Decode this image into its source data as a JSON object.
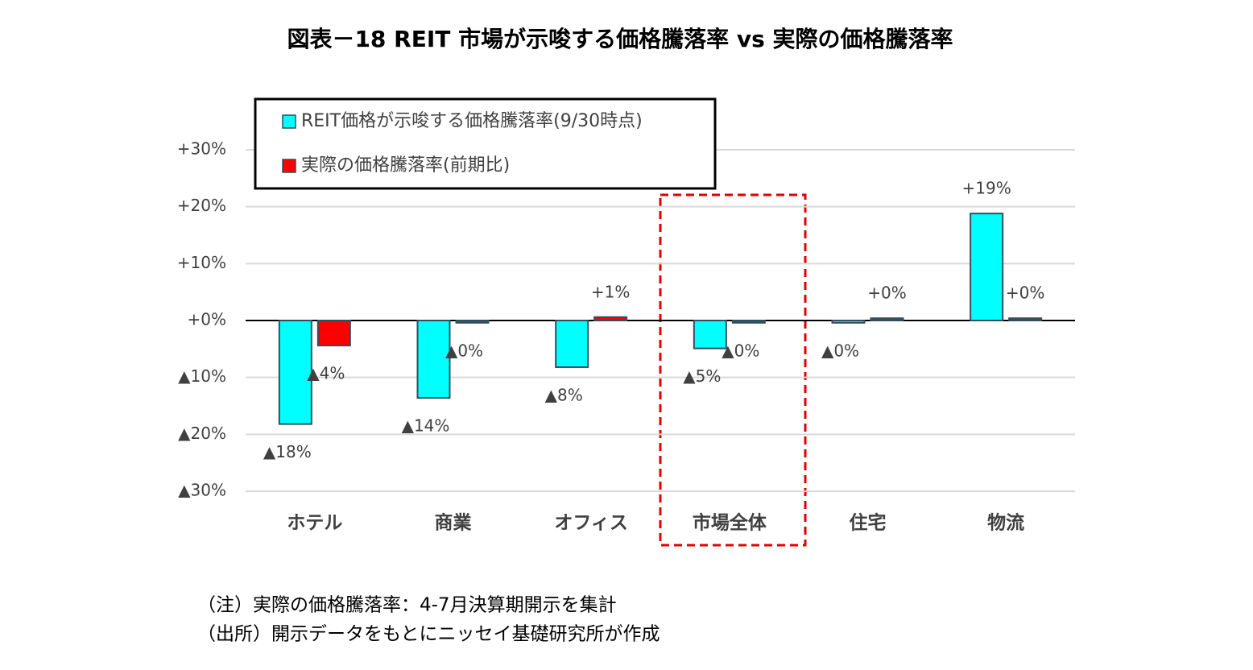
{
  "chart_data": {
    "type": "bar",
    "title": "図表－18  REIT 市場が示唆する価格騰落率 vs 実際の価格騰落率",
    "categories": [
      "ホテル",
      "商業",
      "オフィス",
      "市場全体",
      "住宅",
      "物流"
    ],
    "series": [
      {
        "name": "REIT価格が示唆する価格騰落率(9/30時点)",
        "color": "#00ffff",
        "values": [
          -18.2,
          -13.6,
          -8.2,
          -4.9,
          -0.4,
          18.8
        ],
        "value_labels": [
          "▲18%",
          "▲14%",
          "▲8%",
          "▲5%",
          "▲0%",
          "+19%"
        ]
      },
      {
        "name": "実際の価格騰落率(前期比)",
        "color": "#ff0000",
        "values": [
          -4.4,
          -0.4,
          0.6,
          -0.4,
          0.4,
          0.4
        ],
        "value_labels": [
          "▲4%",
          "▲0%",
          "+1%",
          "▲0%",
          "+0%",
          "+0%"
        ]
      }
    ],
    "ylim": [
      -30,
      30
    ],
    "yticks": [
      {
        "value": 30,
        "label": "+30%"
      },
      {
        "value": 20,
        "label": "+20%"
      },
      {
        "value": 10,
        "label": "+10%"
      },
      {
        "value": 0,
        "label": "+0%"
      },
      {
        "value": -10,
        "label": "▲10%"
      },
      {
        "value": -20,
        "label": "▲20%"
      },
      {
        "value": -30,
        "label": "▲30%"
      }
    ],
    "grid": true,
    "legend": "top-left",
    "notes": [
      "（注）実際の価格騰落率：4-7月決算期開示を集計",
      "（出所）開示データをもとにニッセイ基礎研究所が作成"
    ]
  }
}
